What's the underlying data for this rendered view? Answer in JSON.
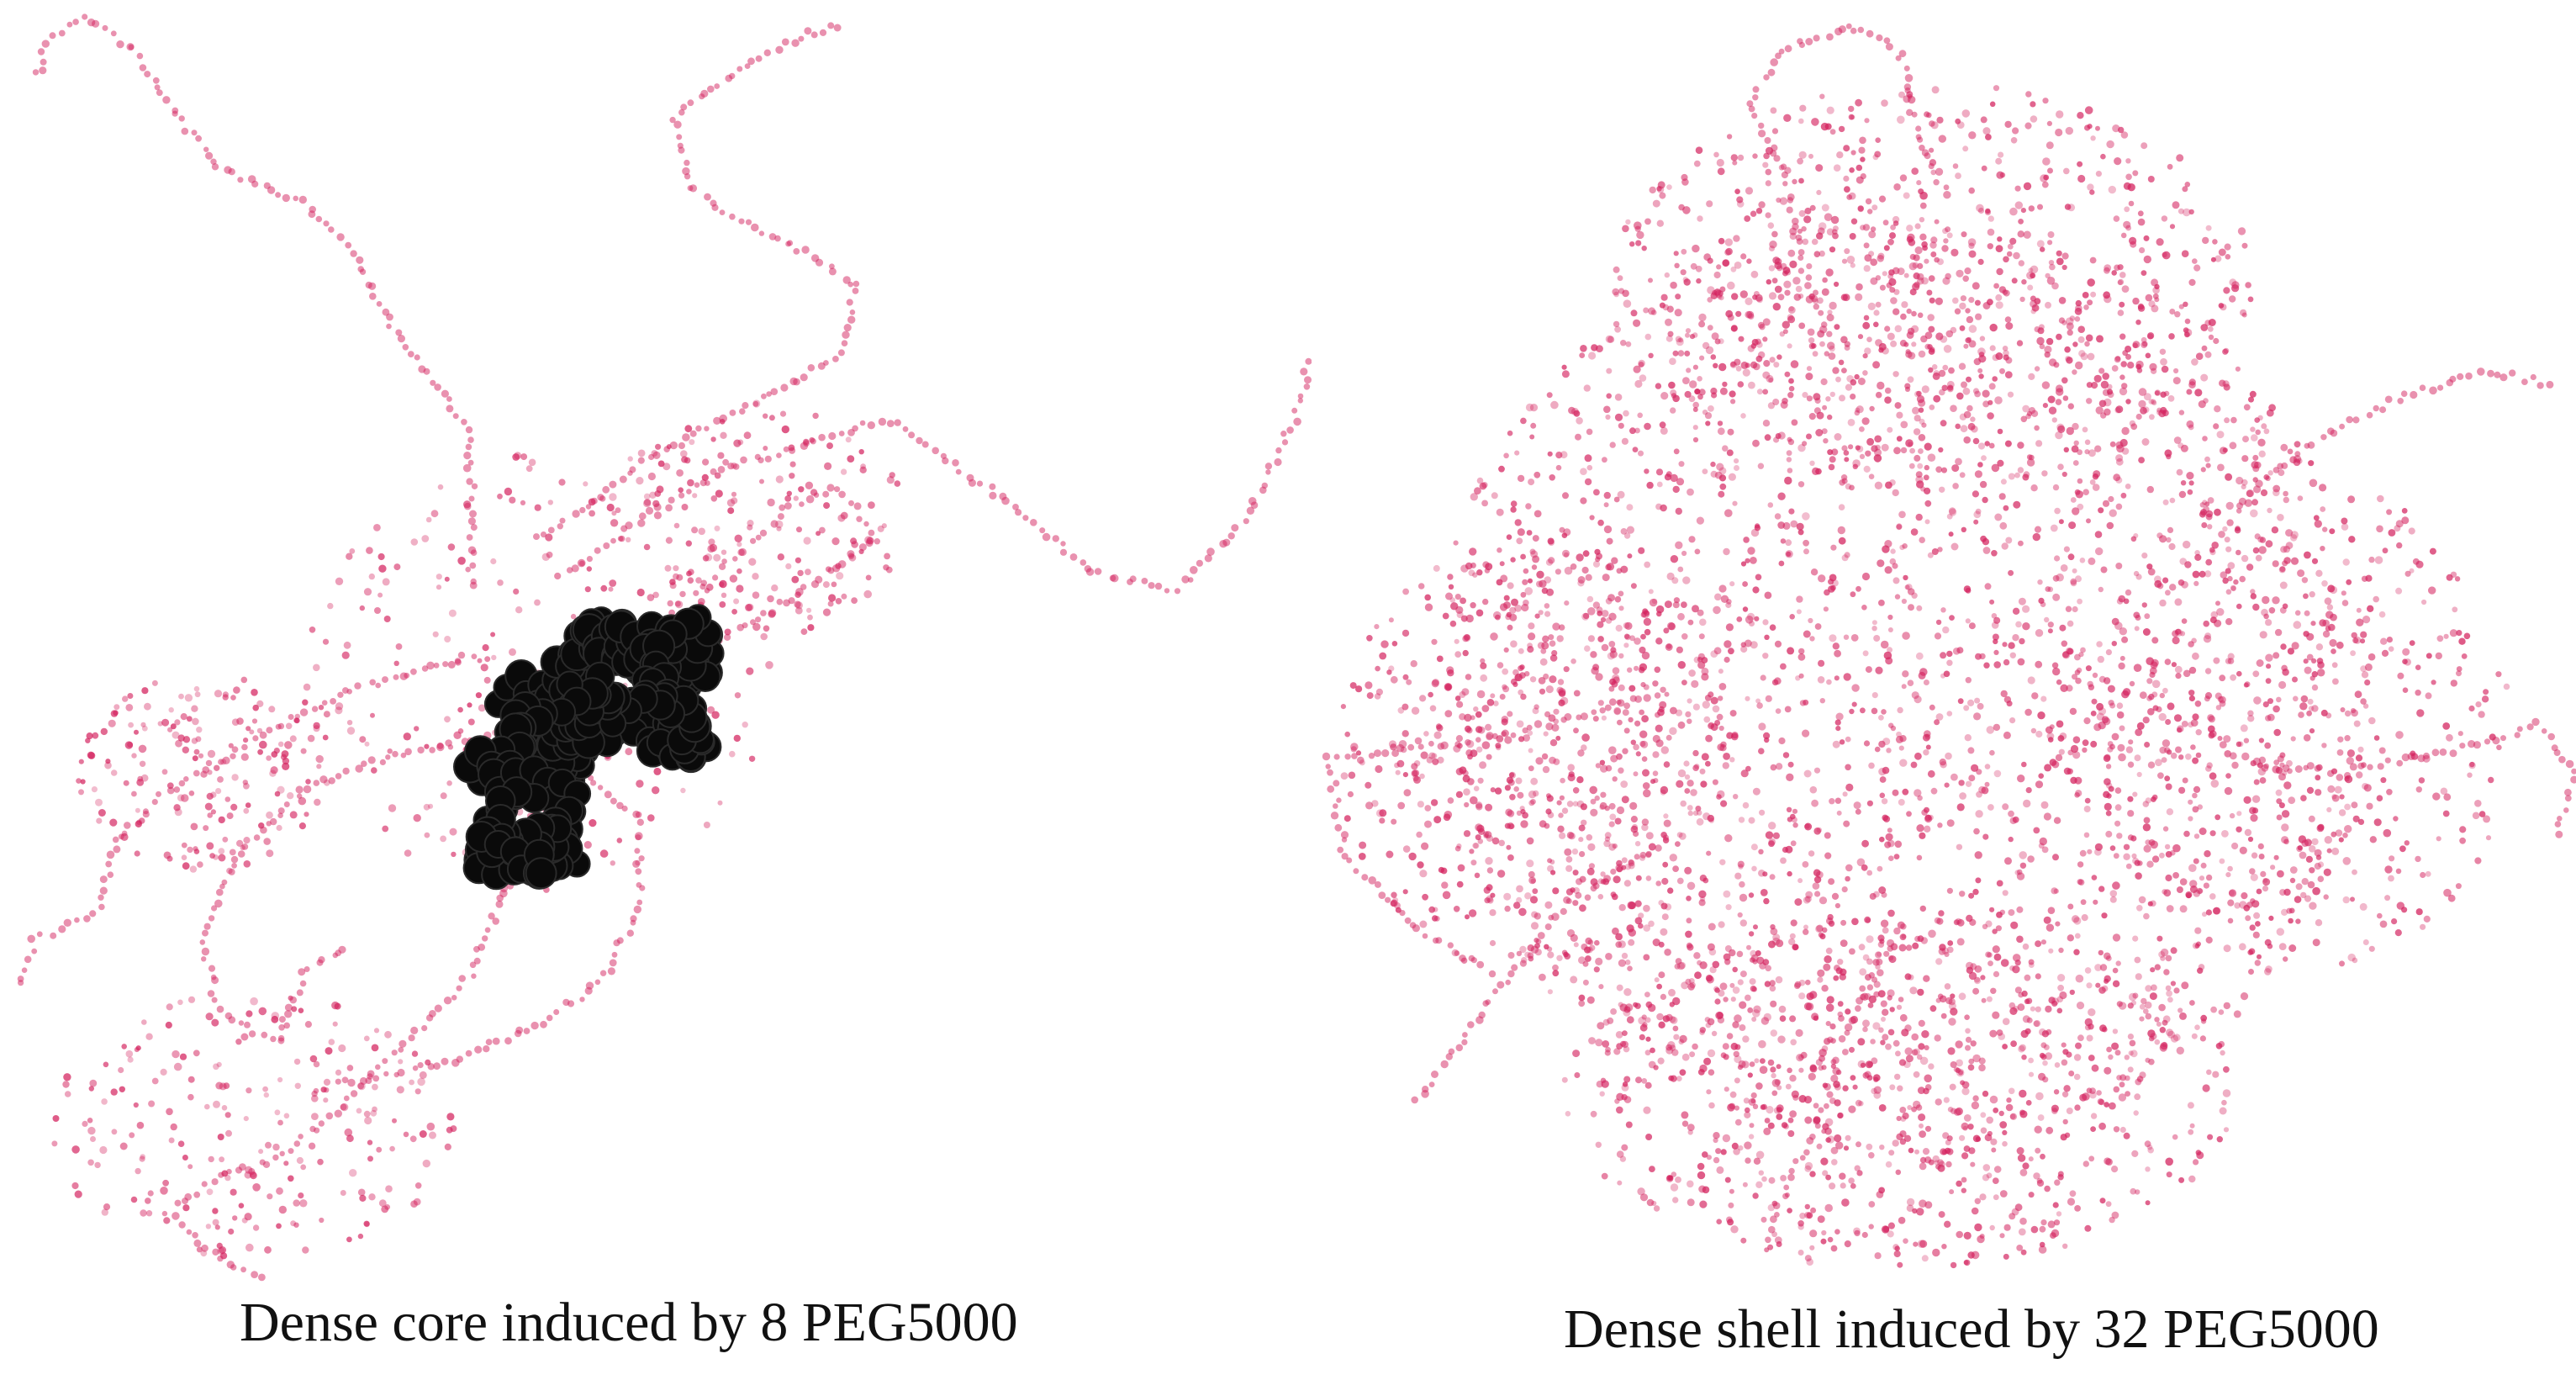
{
  "figure": {
    "panels": [
      {
        "id": "left",
        "caption": "Dense core induced by 8 PEG5000",
        "structure": "dense-core",
        "peg_chains": 8
      },
      {
        "id": "right",
        "caption": "Dense shell induced by 32 PEG5000",
        "structure": "dense-shell",
        "peg_chains": 32
      }
    ]
  },
  "colors": {
    "background": "#ffffff",
    "peg_bead": "#d4235f",
    "core_bead": "#0a0a0a"
  }
}
